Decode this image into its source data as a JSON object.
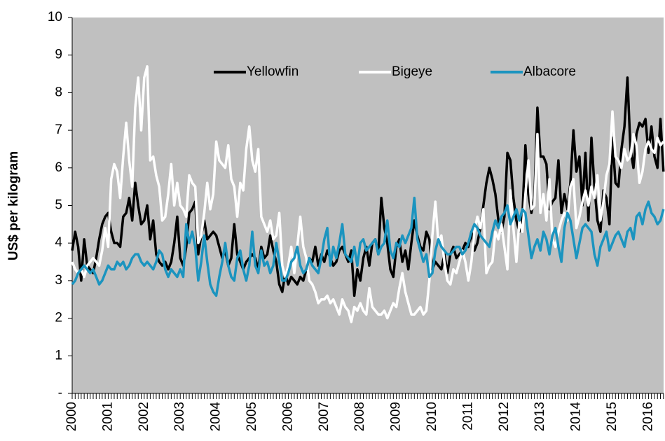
{
  "chart_data": {
    "type": "line",
    "y_label": "US$ per kilogram",
    "categories": [
      "2000",
      null,
      null,
      null,
      null,
      null,
      null,
      null,
      null,
      null,
      null,
      null,
      "2001",
      null,
      null,
      null,
      null,
      null,
      null,
      null,
      null,
      null,
      null,
      null,
      "2002",
      null,
      null,
      null,
      null,
      null,
      null,
      null,
      null,
      null,
      null,
      null,
      "2003",
      null,
      null,
      null,
      null,
      null,
      null,
      null,
      null,
      null,
      null,
      null,
      "2004",
      null,
      null,
      null,
      null,
      null,
      null,
      null,
      null,
      null,
      null,
      null,
      "2005",
      null,
      null,
      null,
      null,
      null,
      null,
      null,
      null,
      null,
      null,
      null,
      "2006",
      null,
      null,
      null,
      null,
      null,
      null,
      null,
      null,
      null,
      null,
      null,
      "2007",
      null,
      null,
      null,
      null,
      null,
      null,
      null,
      null,
      null,
      null,
      null,
      "2008",
      null,
      null,
      null,
      null,
      null,
      null,
      null,
      null,
      null,
      null,
      null,
      "2009",
      null,
      null,
      null,
      null,
      null,
      null,
      null,
      null,
      null,
      null,
      null,
      "2010",
      null,
      null,
      null,
      null,
      null,
      null,
      null,
      null,
      null,
      null,
      null,
      "2011",
      null,
      null,
      null,
      null,
      null,
      null,
      null,
      null,
      null,
      null,
      null,
      "2012",
      null,
      null,
      null,
      null,
      null,
      null,
      null,
      null,
      null,
      null,
      null,
      "2013",
      null,
      null,
      null,
      null,
      null,
      null,
      null,
      null,
      null,
      null,
      null,
      "2014",
      null,
      null,
      null,
      null,
      null,
      null,
      null,
      null,
      null,
      null,
      null,
      "2015",
      null,
      null,
      null,
      null,
      null,
      null,
      null,
      null,
      null,
      null,
      null,
      "2016",
      null,
      null,
      null,
      null,
      null
    ],
    "series": [
      {
        "name": "Yellowfin",
        "color": "#000000",
        "values": [
          3.8,
          4.3,
          3.9,
          3.0,
          4.1,
          3.4,
          3.3,
          3.2,
          3.6,
          4.1,
          4.5,
          4.7,
          4.8,
          4.3,
          4.0,
          4.0,
          3.9,
          4.7,
          4.8,
          5.2,
          4.6,
          5.6,
          5.0,
          4.5,
          4.6,
          5.0,
          4.1,
          4.6,
          3.7,
          3.5,
          3.4,
          3.5,
          3.3,
          3.5,
          4.0,
          4.7,
          3.6,
          3.4,
          3.9,
          4.8,
          4.9,
          5.1,
          3.7,
          4.2,
          4.6,
          4.1,
          4.2,
          4.3,
          4.2,
          3.9,
          3.6,
          3.8,
          3.4,
          3.6,
          4.5,
          3.7,
          3.5,
          3.3,
          3.5,
          3.6,
          3.7,
          3.6,
          3.3,
          3.9,
          3.6,
          3.7,
          4.2,
          3.8,
          3.5,
          2.9,
          2.7,
          3.2,
          2.9,
          3.1,
          3.0,
          2.9,
          3.1,
          3.0,
          3.3,
          3.6,
          3.5,
          3.9,
          3.4,
          3.7,
          3.5,
          3.8,
          3.6,
          3.4,
          3.5,
          3.8,
          3.9,
          3.7,
          3.5,
          3.8,
          2.6,
          3.3,
          3.0,
          3.6,
          3.9,
          3.4,
          4.0,
          4.1,
          3.7,
          5.2,
          4.4,
          4.0,
          3.3,
          3.1,
          3.9,
          4.1,
          3.5,
          3.8,
          3.3,
          4.0,
          4.6,
          4.2,
          3.9,
          3.8,
          4.3,
          4.1,
          3.3,
          3.5,
          3.4,
          3.3,
          3.7,
          3.2,
          3.7,
          3.9,
          3.6,
          3.7,
          3.8,
          4.0,
          3.9,
          4.3,
          3.8,
          4.0,
          4.4,
          5.0,
          5.6,
          6.0,
          5.7,
          5.3,
          4.6,
          4.3,
          4.7,
          6.4,
          6.2,
          5.2,
          4.6,
          4.3,
          4.7,
          6.6,
          5.3,
          4.8,
          5.2,
          7.6,
          6.3,
          6.3,
          6.1,
          4.9,
          5.1,
          5.2,
          6.2,
          4.8,
          5.3,
          4.9,
          5.6,
          7.0,
          5.9,
          6.3,
          5.0,
          6.4,
          4.6,
          6.8,
          5.5,
          4.6,
          4.3,
          5.4,
          5.2,
          4.5,
          6.8,
          5.6,
          5.5,
          6.5,
          7.1,
          8.4,
          6.5,
          6.0,
          6.9,
          7.2,
          7.1,
          7.3,
          6.4,
          7.1,
          6.3,
          6.0,
          7.3,
          5.9
        ]
      },
      {
        "name": "Bigeye",
        "color": "#ffffff",
        "values": [
          3.5,
          3.3,
          3.2,
          3.3,
          3.1,
          3.4,
          3.5,
          3.6,
          3.5,
          3.4,
          3.8,
          4.4,
          3.9,
          5.7,
          6.1,
          5.9,
          5.2,
          6.3,
          7.2,
          6.2,
          5.5,
          7.6,
          8.4,
          7.0,
          8.4,
          8.7,
          6.2,
          6.3,
          5.8,
          5.5,
          4.6,
          4.7,
          5.3,
          6.1,
          5.0,
          5.6,
          5.0,
          4.9,
          4.7,
          5.8,
          5.6,
          5.5,
          4.0,
          4.2,
          4.8,
          5.6,
          4.9,
          5.3,
          6.7,
          6.2,
          6.1,
          6.0,
          6.6,
          5.7,
          5.5,
          4.7,
          5.6,
          5.4,
          6.5,
          7.1,
          6.2,
          5.9,
          6.5,
          4.7,
          4.5,
          4.3,
          4.6,
          4.1,
          4.2,
          4.8,
          3.4,
          3.1,
          3.4,
          3.9,
          3.2,
          3.9,
          4.7,
          3.9,
          3.6,
          3.0,
          2.9,
          2.7,
          2.4,
          2.5,
          2.5,
          2.6,
          2.4,
          2.5,
          2.3,
          2.1,
          2.5,
          2.3,
          2.2,
          1.9,
          2.3,
          2.2,
          2.4,
          2.2,
          2.1,
          2.8,
          2.3,
          2.2,
          2.1,
          2.1,
          2.2,
          2.0,
          2.2,
          2.4,
          2.3,
          2.8,
          3.2,
          2.7,
          2.4,
          2.1,
          2.1,
          2.2,
          2.3,
          2.1,
          2.2,
          3.0,
          4.2,
          5.1,
          4.0,
          4.2,
          3.5,
          3.0,
          2.9,
          3.3,
          3.2,
          3.5,
          3.8,
          3.5,
          3.0,
          3.5,
          4.3,
          4.7,
          4.4,
          4.9,
          3.2,
          3.4,
          3.5,
          4.3,
          4.1,
          4.5,
          3.9,
          3.3,
          5.4,
          4.4,
          3.5,
          4.6,
          4.3,
          5.3,
          6.2,
          4.9,
          5.0,
          6.9,
          4.8,
          5.3,
          4.6,
          5.7,
          4.1,
          3.9,
          4.3,
          4.6,
          4.8,
          4.6,
          5.5,
          5.7,
          4.4,
          4.7,
          5.1,
          5.4,
          5.0,
          5.5,
          5.2,
          5.8,
          4.6,
          5.1,
          5.8,
          6.1,
          7.5,
          6.3,
          6.2,
          6.0,
          6.5,
          6.2,
          6.3,
          6.9,
          6.6,
          5.6,
          5.9,
          6.5,
          6.7,
          6.5,
          6.4,
          6.8,
          6.6,
          6.7
        ]
      },
      {
        "name": "Albacore",
        "color": "#1b94bf",
        "values": [
          2.9,
          3.0,
          3.2,
          3.3,
          3.4,
          3.3,
          3.2,
          3.3,
          3.1,
          2.9,
          3.0,
          3.2,
          3.4,
          3.3,
          3.3,
          3.5,
          3.4,
          3.5,
          3.3,
          3.4,
          3.6,
          3.7,
          3.7,
          3.5,
          3.4,
          3.5,
          3.4,
          3.3,
          3.5,
          3.8,
          3.7,
          3.3,
          3.1,
          3.3,
          3.2,
          3.1,
          3.3,
          3.1,
          4.5,
          4.0,
          4.3,
          3.9,
          3.0,
          3.5,
          4.2,
          3.5,
          2.9,
          2.7,
          2.6,
          3.1,
          3.5,
          4.0,
          3.4,
          3.1,
          3.0,
          3.6,
          3.8,
          3.3,
          3.0,
          3.4,
          4.3,
          3.4,
          3.2,
          3.8,
          3.4,
          3.5,
          3.2,
          3.4,
          4.0,
          3.5,
          3.0,
          3.0,
          3.2,
          3.5,
          3.6,
          3.9,
          3.4,
          3.2,
          3.3,
          3.6,
          3.4,
          3.3,
          3.2,
          3.6,
          4.1,
          4.4,
          3.4,
          3.9,
          3.6,
          4.0,
          4.5,
          3.7,
          3.6,
          3.5,
          3.9,
          3.4,
          4.0,
          4.1,
          3.8,
          3.9,
          4.0,
          4.1,
          3.7,
          3.9,
          4.0,
          4.6,
          3.8,
          3.6,
          4.0,
          3.9,
          4.2,
          4.0,
          4.2,
          4.4,
          5.2,
          4.1,
          3.8,
          3.5,
          3.7,
          3.1,
          3.2,
          3.8,
          4.1,
          3.9,
          3.8,
          3.7,
          3.7,
          3.8,
          3.9,
          3.9,
          3.7,
          3.8,
          4.0,
          4.3,
          4.5,
          4.4,
          4.2,
          4.1,
          4.0,
          3.9,
          4.3,
          4.6,
          4.4,
          4.7,
          4.8,
          5.0,
          4.5,
          4.7,
          4.9,
          4.6,
          4.9,
          4.8,
          4.2,
          3.6,
          3.9,
          4.1,
          3.8,
          4.3,
          4.1,
          3.7,
          4.2,
          4.4,
          3.9,
          3.5,
          4.4,
          4.8,
          4.6,
          4.1,
          3.6,
          4.0,
          4.4,
          4.5,
          4.4,
          4.3,
          3.7,
          3.4,
          3.9,
          4.1,
          4.3,
          3.8,
          4.0,
          4.2,
          4.3,
          4.1,
          3.9,
          4.3,
          4.4,
          4.1,
          4.7,
          4.8,
          4.5,
          4.9,
          5.1,
          4.8,
          4.7,
          4.5,
          4.6,
          4.9
        ]
      }
    ],
    "ylim": [
      0,
      10
    ],
    "yticks": [
      {
        "value": 0,
        "label": "-"
      },
      1,
      2,
      3,
      4,
      5,
      6,
      7,
      8,
      9,
      10
    ],
    "legend": "top",
    "background": "#c0c0c0"
  }
}
